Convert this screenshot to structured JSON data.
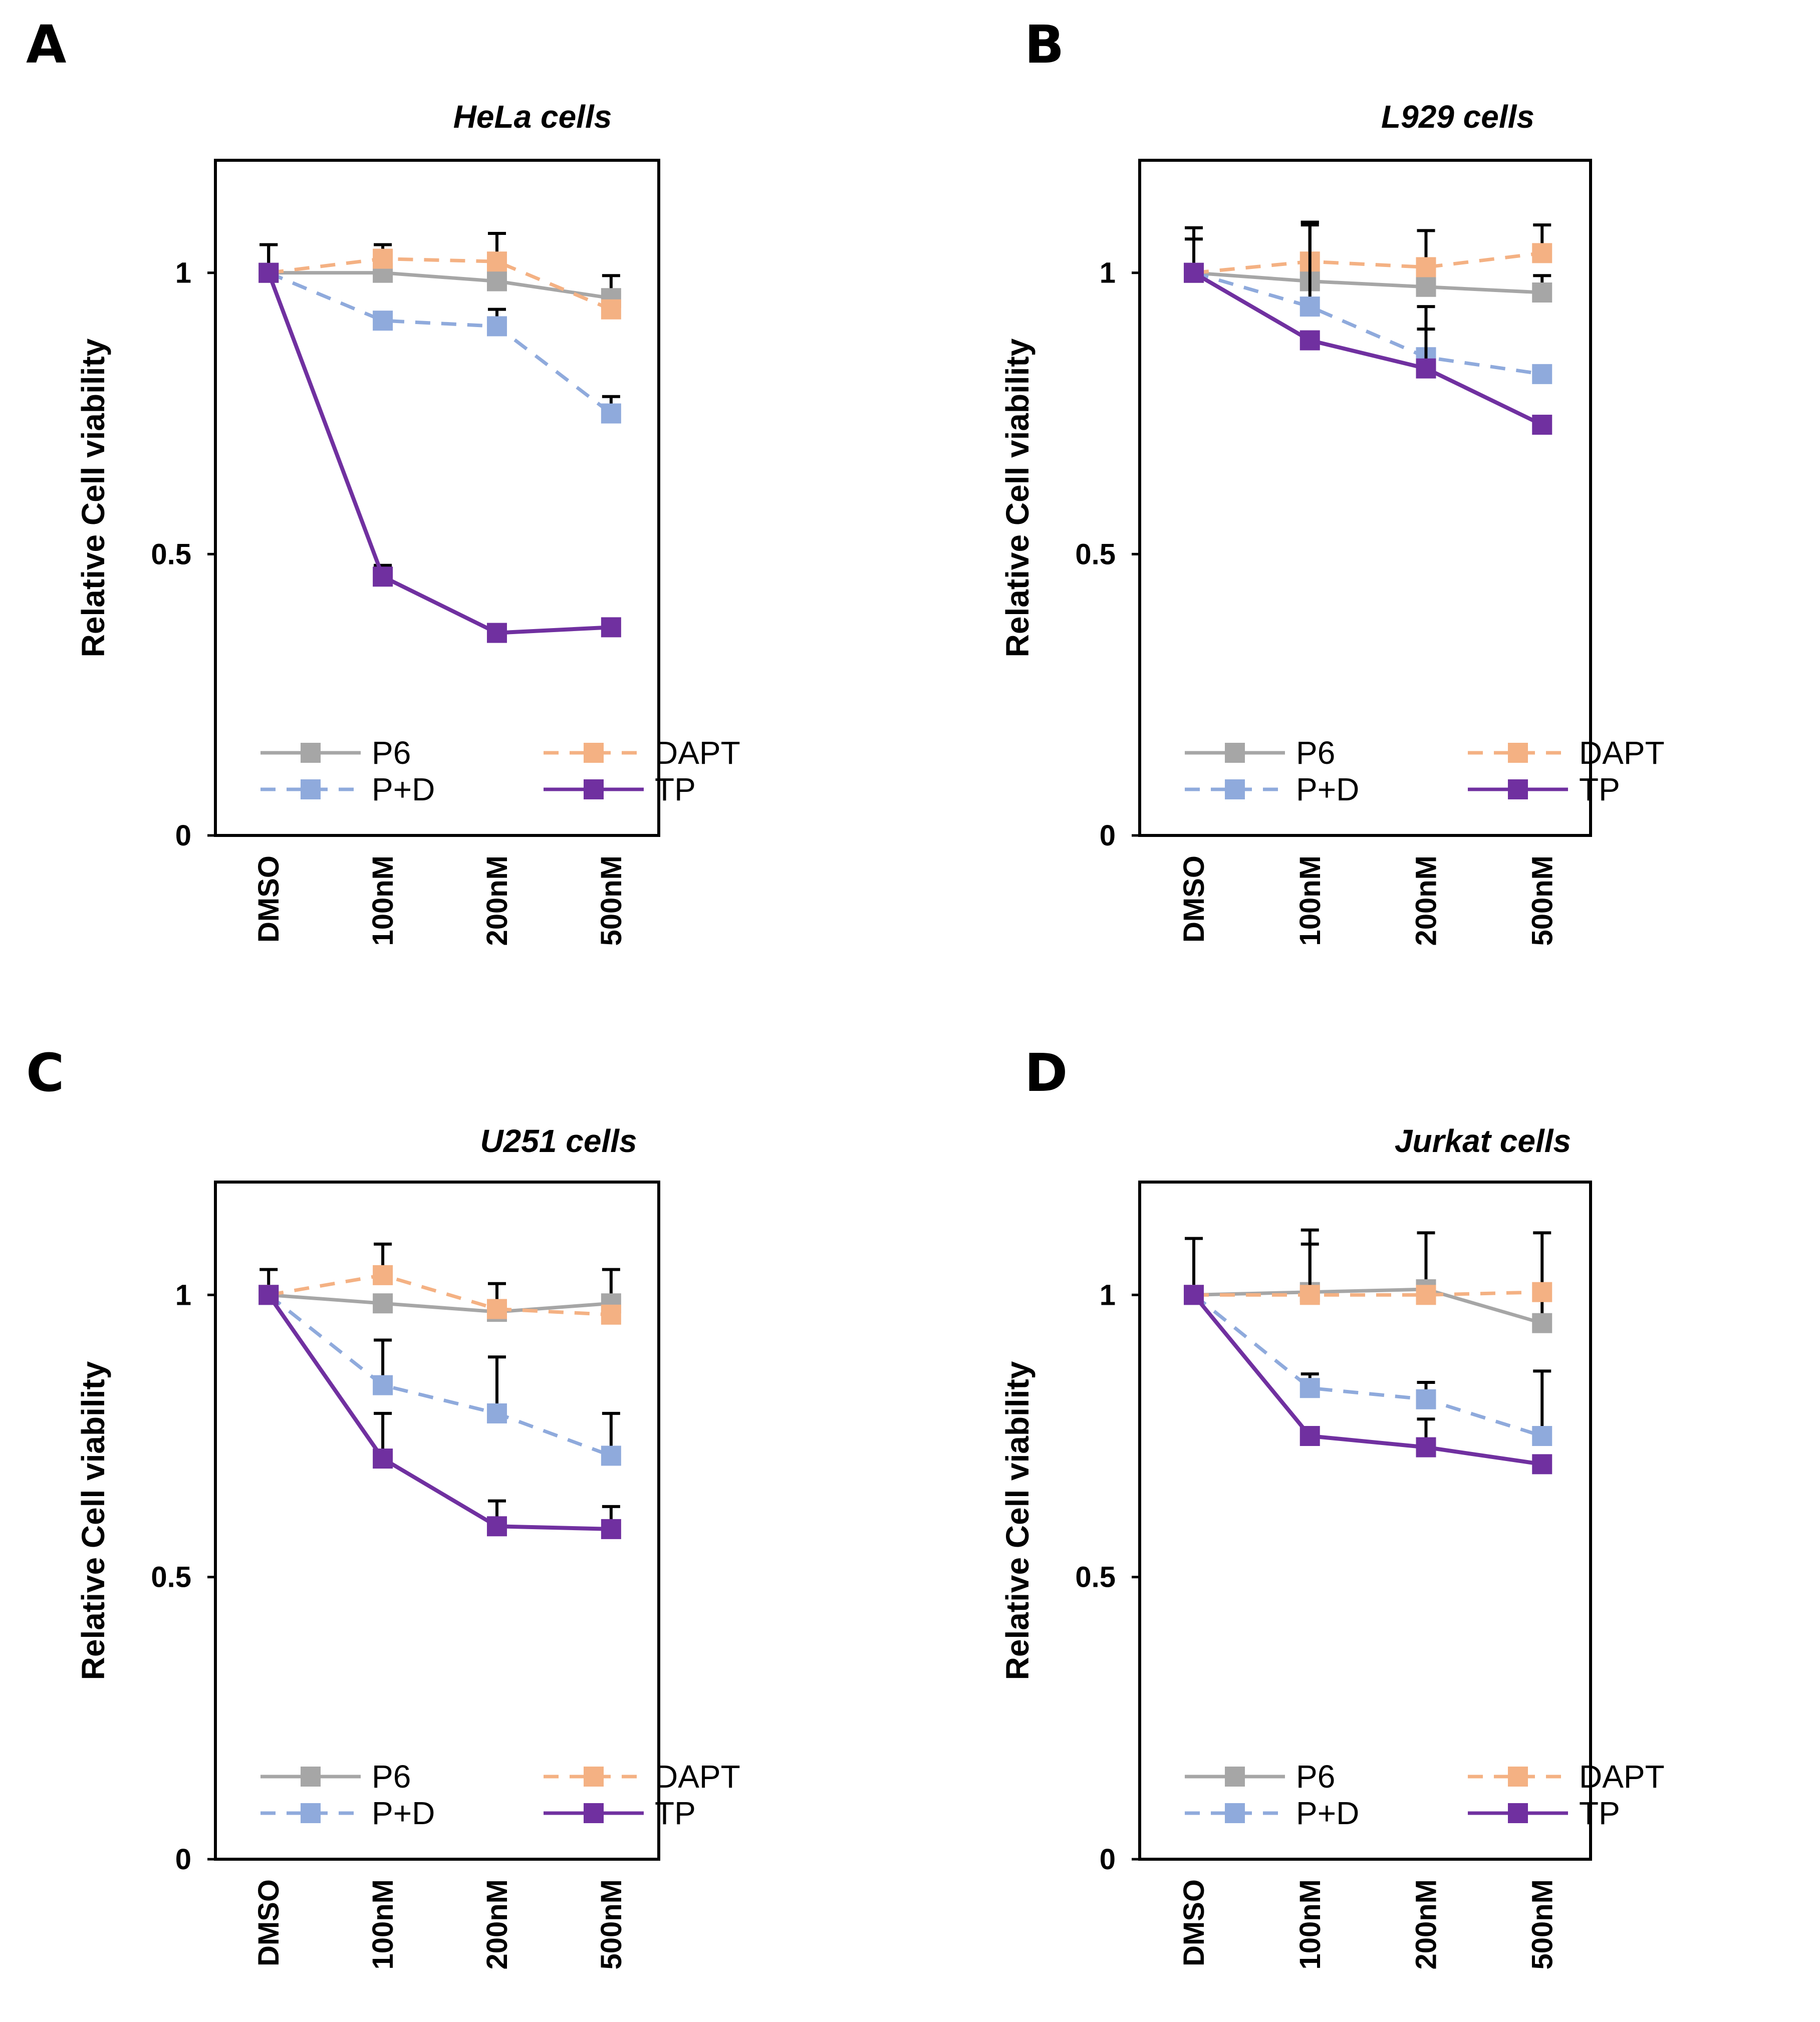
{
  "colors": {
    "P6": "#a6a6a6",
    "DAPT": "#f4b183",
    "P+D": "#8faadc",
    "TP": "#7030a0",
    "axis": "#000000"
  },
  "chart_data": [
    {
      "panel": "A",
      "type": "line",
      "title": "HeLa cells",
      "xlabel": "",
      "ylabel": "Relative Cell viability",
      "categories": [
        "DMSO",
        "100nM",
        "200nM",
        "500nM"
      ],
      "yticks": [
        "0",
        "0.5",
        "1"
      ],
      "ylim": [
        0,
        1.2
      ],
      "legend_position": "bottom-inside",
      "series": [
        {
          "name": "P6",
          "dashed": false,
          "values": [
            1.0,
            1.0,
            0.985,
            0.955
          ],
          "errors": [
            0.05,
            0.0,
            0.0,
            0.04
          ]
        },
        {
          "name": "DAPT",
          "dashed": true,
          "values": [
            1.0,
            1.025,
            1.02,
            0.935
          ],
          "errors": [
            0.0,
            0.025,
            0.05,
            0.0
          ]
        },
        {
          "name": "P+D",
          "dashed": true,
          "values": [
            1.0,
            0.915,
            0.905,
            0.75
          ],
          "errors": [
            0.0,
            0.0,
            0.03,
            0.03
          ]
        },
        {
          "name": "TP",
          "dashed": false,
          "values": [
            1.0,
            0.46,
            0.36,
            0.37
          ],
          "errors": [
            0.05,
            0.02,
            0.0,
            0.0
          ]
        }
      ]
    },
    {
      "panel": "B",
      "type": "line",
      "title": "L929 cells",
      "xlabel": "",
      "ylabel": "Relative Cell viability",
      "categories": [
        "DMSO",
        "100nM",
        "200nM",
        "500nM"
      ],
      "yticks": [
        "0",
        "0.5",
        "1"
      ],
      "ylim": [
        0,
        1.2
      ],
      "legend_position": "bottom-inside",
      "series": [
        {
          "name": "P6",
          "dashed": false,
          "values": [
            1.0,
            0.985,
            0.975,
            0.965
          ],
          "errors": [
            0.08,
            0.1,
            0.1,
            0.03
          ]
        },
        {
          "name": "DAPT",
          "dashed": true,
          "values": [
            1.0,
            1.02,
            1.01,
            1.035
          ],
          "errors": [
            0.06,
            0.07,
            0.0,
            0.05
          ]
        },
        {
          "name": "P+D",
          "dashed": true,
          "values": [
            1.0,
            0.94,
            0.85,
            0.82
          ],
          "errors": [
            0.0,
            0.15,
            0.09,
            0.0
          ]
        },
        {
          "name": "TP",
          "dashed": false,
          "values": [
            1.0,
            0.88,
            0.83,
            0.73
          ],
          "errors": [
            0.0,
            0.0,
            0.07,
            0.015
          ]
        }
      ]
    },
    {
      "panel": "C",
      "type": "line",
      "title": "U251 cells",
      "xlabel": "",
      "ylabel": "Relative Cell viability",
      "categories": [
        "DMSO",
        "100nM",
        "200nM",
        "500nM"
      ],
      "yticks": [
        "0",
        "0.5",
        "1"
      ],
      "ylim": [
        0,
        1.2
      ],
      "legend_position": "bottom-inside",
      "series": [
        {
          "name": "P6",
          "dashed": false,
          "values": [
            1.0,
            0.985,
            0.97,
            0.985
          ],
          "errors": [
            0.045,
            0.0,
            0.05,
            0.06
          ]
        },
        {
          "name": "DAPT",
          "dashed": true,
          "values": [
            1.0,
            1.035,
            0.975,
            0.965
          ],
          "errors": [
            0.0,
            0.055,
            0.0,
            0.0
          ]
        },
        {
          "name": "P+D",
          "dashed": true,
          "values": [
            1.0,
            0.84,
            0.79,
            0.715
          ],
          "errors": [
            0.0,
            0.08,
            0.1,
            0.075
          ]
        },
        {
          "name": "TP",
          "dashed": false,
          "values": [
            1.0,
            0.71,
            0.59,
            0.585
          ],
          "errors": [
            0.0,
            0.08,
            0.045,
            0.04
          ]
        }
      ]
    },
    {
      "panel": "D",
      "type": "line",
      "title": "Jurkat cells",
      "xlabel": "",
      "ylabel": "Relative Cell viability",
      "categories": [
        "DMSO",
        "100nM",
        "200nM",
        "500nM"
      ],
      "yticks": [
        "0",
        "0.5",
        "1"
      ],
      "ylim": [
        0,
        1.2
      ],
      "legend_position": "bottom-inside",
      "series": [
        {
          "name": "P6",
          "dashed": false,
          "values": [
            1.0,
            1.005,
            1.01,
            0.95
          ],
          "errors": [
            0.1,
            0.11,
            0.1,
            0.16
          ]
        },
        {
          "name": "DAPT",
          "dashed": true,
          "values": [
            1.0,
            1.0,
            1.0,
            1.005
          ],
          "errors": [
            0.0,
            0.09,
            0.0,
            0.0
          ]
        },
        {
          "name": "P+D",
          "dashed": true,
          "values": [
            1.0,
            0.835,
            0.815,
            0.75
          ],
          "errors": [
            0.0,
            0.025,
            0.03,
            0.115
          ]
        },
        {
          "name": "TP",
          "dashed": false,
          "values": [
            1.0,
            0.75,
            0.73,
            0.7
          ],
          "errors": [
            0.0,
            0.0,
            0.05,
            0.0
          ]
        }
      ]
    }
  ]
}
